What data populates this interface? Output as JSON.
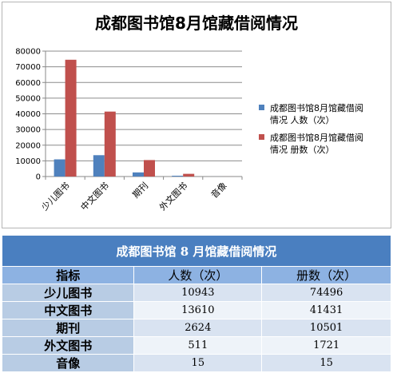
{
  "chart_data": {
    "type": "bar",
    "title": "成都图书馆8月馆藏借阅情况",
    "categories": [
      "少儿图书",
      "中文图书",
      "期刊",
      "外文图书",
      "音像"
    ],
    "series": [
      {
        "name": "成都图书馆8月馆藏借阅情况 人数（次）",
        "values": [
          10943,
          13610,
          2624,
          511,
          15
        ]
      },
      {
        "name": "成都图书馆8月馆藏借阅情况 册数（次）",
        "values": [
          74496,
          41431,
          10501,
          1721,
          15
        ]
      }
    ],
    "ylim": [
      0,
      80000
    ],
    "yticks": [
      0,
      10000,
      20000,
      30000,
      40000,
      50000,
      60000,
      70000,
      80000
    ],
    "grid": true,
    "legend_position": "right",
    "colors": [
      "#4f81bd",
      "#c0504d"
    ],
    "legend_lines": [
      [
        "成都图书馆8月馆藏借阅",
        "情况 人数（次）"
      ],
      [
        "成都图书馆8月馆藏借阅",
        "情况 册数（次）"
      ]
    ]
  },
  "table": {
    "title": "成都图书馆 8 月馆藏借阅情况",
    "headers": [
      "指标",
      "人数（次）",
      "册数（次）"
    ],
    "rows": [
      {
        "label": "少儿图书",
        "people": "10943",
        "volumes": "74496"
      },
      {
        "label": "中文图书",
        "people": "13610",
        "volumes": "41431"
      },
      {
        "label": "期刊",
        "people": "2624",
        "volumes": "10501"
      },
      {
        "label": "外文图书",
        "people": "511",
        "volumes": "1721"
      },
      {
        "label": "音像",
        "people": "15",
        "volumes": "15"
      }
    ]
  }
}
